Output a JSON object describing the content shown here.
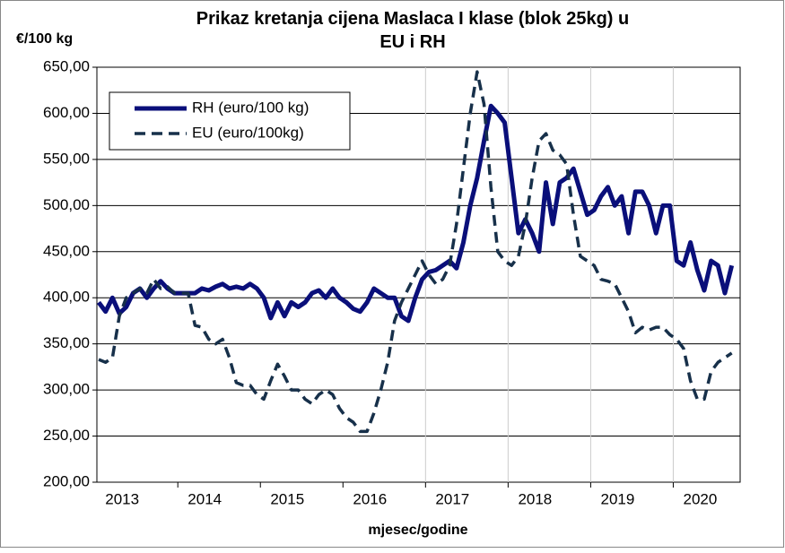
{
  "chart_data": {
    "type": "line",
    "title": "Prikaz kretanja cijena Maslaca I klase (blok 25kg) u EU i RH",
    "y_label": "€/100 kg",
    "x_label": "mjesec/godine",
    "categories": [
      "2013",
      null,
      null,
      null,
      null,
      null,
      null,
      null,
      null,
      null,
      null,
      null,
      "2014",
      null,
      null,
      null,
      null,
      null,
      null,
      null,
      null,
      null,
      null,
      null,
      "2015",
      null,
      null,
      null,
      null,
      null,
      null,
      null,
      null,
      null,
      null,
      null,
      "2016",
      null,
      null,
      null,
      null,
      null,
      null,
      null,
      null,
      null,
      null,
      null,
      "2017",
      null,
      null,
      null,
      null,
      null,
      null,
      null,
      null,
      null,
      null,
      null,
      "2018",
      null,
      null,
      null,
      null,
      null,
      null,
      null,
      null,
      null,
      null,
      null,
      "2019",
      null,
      null,
      null,
      null,
      null,
      null,
      null,
      null,
      null,
      null,
      null,
      "2020",
      null,
      null,
      null,
      null,
      null,
      null,
      null,
      null
    ],
    "series": [
      {
        "name": "RH (euro/100 kg)",
        "color": "#0a0f7a",
        "style": "solid",
        "values": [
          395,
          385,
          400,
          383,
          390,
          405,
          410,
          400,
          410,
          418,
          410,
          405,
          405,
          405,
          405,
          410,
          408,
          412,
          415,
          410,
          412,
          410,
          415,
          410,
          400,
          378,
          395,
          380,
          395,
          390,
          395,
          405,
          408,
          400,
          410,
          400,
          395,
          388,
          385,
          395,
          410,
          405,
          400,
          400,
          380,
          375,
          400,
          420,
          428,
          430,
          435,
          440,
          432,
          460,
          500,
          530,
          570,
          608,
          600,
          590,
          530,
          470,
          485,
          470,
          450,
          525,
          480,
          525,
          530,
          540,
          515,
          490,
          495,
          510,
          520,
          500,
          510,
          470,
          515,
          515,
          500,
          470,
          500,
          500,
          440,
          435,
          460,
          430,
          408,
          440,
          435,
          405,
          435
        ]
      },
      {
        "name": "EU (euro/100kg)",
        "color": "#17304a",
        "style": "dashed",
        "values": [
          333,
          330,
          335,
          380,
          400,
          405,
          410,
          405,
          420,
          410,
          412,
          405,
          405,
          405,
          370,
          368,
          355,
          350,
          355,
          335,
          308,
          305,
          305,
          295,
          290,
          310,
          328,
          315,
          300,
          300,
          290,
          285,
          295,
          300,
          295,
          280,
          270,
          265,
          255,
          255,
          275,
          300,
          330,
          375,
          395,
          410,
          425,
          440,
          425,
          415,
          420,
          435,
          480,
          540,
          600,
          645,
          610,
          520,
          450,
          440,
          435,
          445,
          480,
          530,
          570,
          578,
          560,
          555,
          545,
          490,
          445,
          440,
          435,
          420,
          418,
          415,
          400,
          385,
          362,
          368,
          365,
          368,
          368,
          360,
          355,
          345,
          310,
          290,
          290,
          320,
          330,
          335,
          340
        ]
      }
    ],
    "ylim": [
      200,
      650
    ],
    "yticks": [
      {
        "value": 200,
        "label": "200,00"
      },
      {
        "value": 250,
        "label": "250,00"
      },
      {
        "value": 300,
        "label": "300,00"
      },
      {
        "value": 350,
        "label": "350,00"
      },
      {
        "value": 400,
        "label": "400,00"
      },
      {
        "value": 450,
        "label": "450,00"
      },
      {
        "value": 500,
        "label": "500,00"
      },
      {
        "value": 550,
        "label": "550,00"
      },
      {
        "value": 600,
        "label": "600,00"
      },
      {
        "value": 650,
        "label": "650,00"
      }
    ],
    "grid": true,
    "legend": "upper left"
  }
}
